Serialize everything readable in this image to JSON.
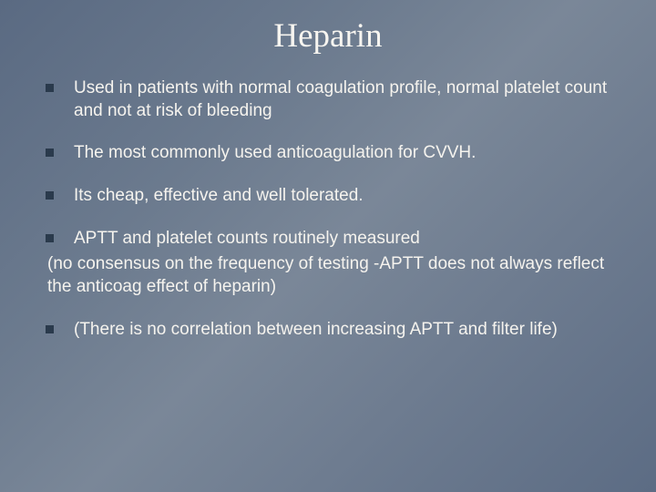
{
  "slide": {
    "title": "Heparin",
    "title_fontsize": 37,
    "title_color": "#f7f5f0",
    "body_fontsize": 19,
    "body_color": "#f5f3ee",
    "bullet_marker_color": "#2a3a4c",
    "background_gradient": [
      "#5a6a82",
      "#6b7a8e",
      "#7a8798",
      "#6e7c90",
      "#5c6c84"
    ],
    "items": [
      {
        "text": "Used in patients with normal coagulation profile, normal platelet count and not at risk of bleeding",
        "subtext": null
      },
      {
        "text": "The most commonly used anticoagulation for CVVH.",
        "subtext": null
      },
      {
        "text": "Its cheap, effective and well tolerated.",
        "subtext": null
      },
      {
        "text": "APTT and platelet counts routinely measured",
        "subtext": "(no consensus on the frequency of testing -APTT does not always reflect the anticoag effect of heparin)"
      },
      {
        "text": "(There is no correlation between increasing APTT and filter life)",
        "subtext": null
      }
    ]
  }
}
